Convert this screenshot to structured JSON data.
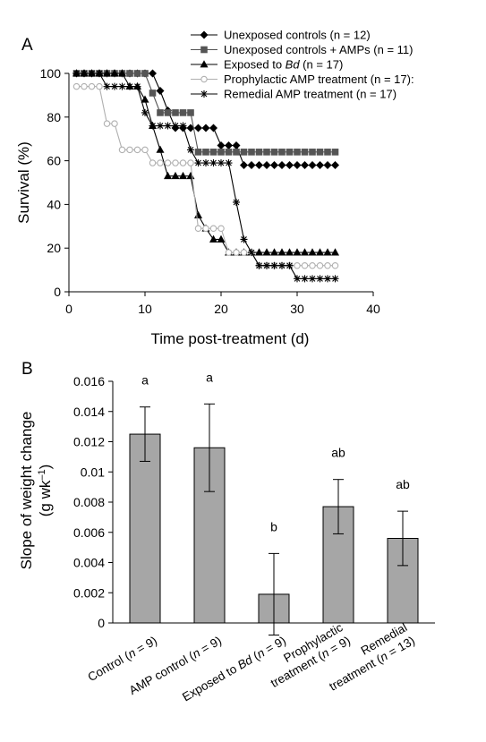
{
  "chart_data": [
    {
      "type": "line",
      "panel_label": "A",
      "xlabel": "Time post-treatment (d)",
      "ylabel": "Survival (%)",
      "xlim": [
        0,
        40
      ],
      "ylim": [
        0,
        100
      ],
      "xticks": [
        0,
        10,
        20,
        30,
        40
      ],
      "yticks": [
        0,
        20,
        40,
        60,
        80,
        100
      ],
      "grid": false,
      "legend_position": "top-right",
      "series": [
        {
          "name_parts": [
            "Unexposed controls (n = 12)"
          ],
          "marker": "diamond",
          "color": "#000000",
          "line": "#000000",
          "x": [
            1,
            2,
            3,
            4,
            5,
            6,
            7,
            8,
            9,
            10,
            11,
            12,
            13,
            14,
            15,
            16,
            17,
            18,
            19,
            20,
            21,
            22,
            23,
            24,
            25,
            26,
            27,
            28,
            29,
            30,
            31,
            32,
            33,
            34,
            35
          ],
          "y": [
            100,
            100,
            100,
            100,
            100,
            100,
            100,
            100,
            100,
            100,
            100,
            92,
            83,
            75,
            75,
            75,
            75,
            75,
            75,
            67,
            67,
            67,
            58,
            58,
            58,
            58,
            58,
            58,
            58,
            58,
            58,
            58,
            58,
            58,
            58
          ]
        },
        {
          "name_parts": [
            "Unexposed controls + AMPs (n = 11)"
          ],
          "marker": "square",
          "color": "#555555",
          "line": "#555555",
          "x": [
            1,
            2,
            3,
            4,
            5,
            6,
            7,
            8,
            9,
            10,
            11,
            12,
            13,
            14,
            15,
            16,
            17,
            18,
            19,
            20,
            21,
            22,
            23,
            24,
            25,
            26,
            27,
            28,
            29,
            30,
            31,
            32,
            33,
            34,
            35
          ],
          "y": [
            100,
            100,
            100,
            100,
            100,
            100,
            100,
            100,
            100,
            100,
            91,
            82,
            82,
            82,
            82,
            82,
            64,
            64,
            64,
            64,
            64,
            64,
            64,
            64,
            64,
            64,
            64,
            64,
            64,
            64,
            64,
            64,
            64,
            64,
            64
          ]
        },
        {
          "name_parts": [
            "Exposed to ",
            "Bd",
            " (n = 17)"
          ],
          "marker": "triangle",
          "color": "#000000",
          "line": "#000000",
          "x": [
            1,
            2,
            3,
            4,
            5,
            6,
            7,
            8,
            9,
            10,
            11,
            12,
            13,
            14,
            15,
            16,
            17,
            18,
            19,
            20,
            21,
            22,
            23,
            24,
            25,
            26,
            27,
            28,
            29,
            30,
            31,
            32,
            33,
            34,
            35
          ],
          "y": [
            100,
            100,
            100,
            100,
            100,
            100,
            100,
            94,
            94,
            88,
            76,
            65,
            53,
            53,
            53,
            53,
            35,
            29,
            24,
            24,
            18,
            18,
            18,
            18,
            18,
            18,
            18,
            18,
            18,
            18,
            18,
            18,
            18,
            18,
            18
          ]
        },
        {
          "name_parts": [
            "Prophylactic AMP treatment (n = 17):"
          ],
          "marker": "circle",
          "color": "#b0b0b0",
          "line": "#b0b0b0",
          "x": [
            1,
            2,
            3,
            4,
            5,
            6,
            7,
            8,
            9,
            10,
            11,
            12,
            13,
            14,
            15,
            16,
            17,
            18,
            19,
            20,
            21,
            22,
            23,
            24,
            25,
            26,
            27,
            28,
            29,
            30,
            31,
            32,
            33,
            34,
            35
          ],
          "y": [
            94,
            94,
            94,
            94,
            77,
            77,
            65,
            65,
            65,
            65,
            59,
            59,
            59,
            59,
            59,
            59,
            29,
            29,
            29,
            29,
            18,
            18,
            18,
            18,
            12,
            12,
            12,
            12,
            12,
            12,
            12,
            12,
            12,
            12,
            12
          ]
        },
        {
          "name_parts": [
            "Remedial AMP treatment (n = 17)"
          ],
          "marker": "asterisk",
          "color": "#000000",
          "line": "#000000",
          "x": [
            1,
            2,
            3,
            4,
            5,
            6,
            7,
            8,
            9,
            10,
            11,
            12,
            13,
            14,
            15,
            16,
            17,
            18,
            19,
            20,
            21,
            22,
            23,
            24,
            25,
            26,
            27,
            28,
            29,
            30,
            31,
            32,
            33,
            34,
            35
          ],
          "y": [
            100,
            100,
            100,
            100,
            94,
            94,
            94,
            94,
            94,
            82,
            76,
            76,
            76,
            76,
            76,
            65,
            59,
            59,
            59,
            59,
            59,
            41,
            24,
            18,
            12,
            12,
            12,
            12,
            12,
            6,
            6,
            6,
            6,
            6,
            6
          ]
        }
      ]
    },
    {
      "type": "bar",
      "panel_label": "B",
      "ylabel_line1": "Slope of weight change",
      "ylabel_line2_main": "(g wk",
      "ylabel_line2_sup": "–1",
      "ylabel_line2_end": ")",
      "ylim": [
        0,
        0.016
      ],
      "yticks": [
        "0",
        "0.002",
        "0.004",
        "0.006",
        "0.008",
        "0.01",
        "0.012",
        "0.014",
        "0.016"
      ],
      "ytick_values": [
        0,
        0.002,
        0.004,
        0.006,
        0.008,
        0.01,
        0.012,
        0.014,
        0.016
      ],
      "bar_color": "#a6a6a6",
      "categories": [
        {
          "lines": [
            [
              "Control (",
              {
                "i": "n"
              },
              " = 9)"
            ]
          ]
        },
        {
          "lines": [
            [
              "AMP control (",
              {
                "i": "n"
              },
              " = 9)"
            ]
          ]
        },
        {
          "lines": [
            [
              "Exposed to ",
              {
                "i": "Bd"
              },
              " (",
              {
                "i": "n"
              },
              " = 9)"
            ]
          ]
        },
        {
          "lines": [
            [
              "Prophylactic"
            ],
            [
              "treatment (",
              {
                "i": "n"
              },
              " = 9)"
            ]
          ]
        },
        {
          "lines": [
            [
              "Remedial"
            ],
            [
              "treatment (",
              {
                "i": "n"
              },
              " = 13)"
            ]
          ]
        }
      ],
      "values": [
        0.0125,
        0.0116,
        0.0019,
        0.0077,
        0.0056
      ],
      "errors": [
        0.0018,
        0.0029,
        0.0027,
        0.0018,
        0.0018
      ],
      "significance_letters": [
        "a",
        "a",
        "b",
        "ab",
        "ab"
      ]
    }
  ]
}
